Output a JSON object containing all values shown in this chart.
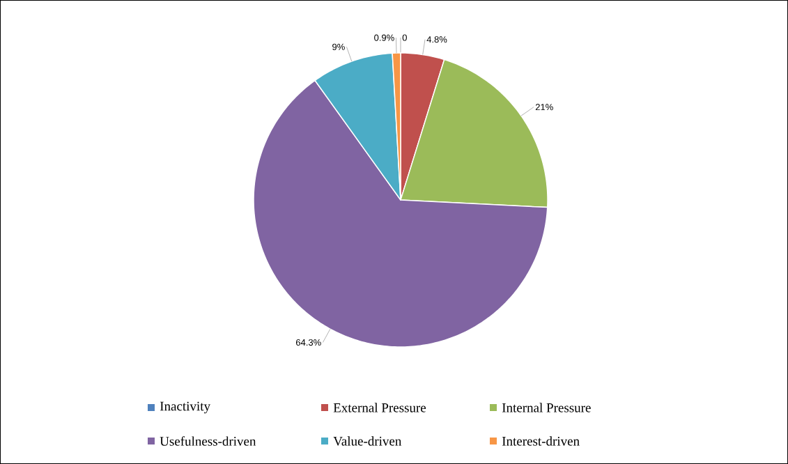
{
  "chart_data": {
    "type": "pie",
    "categories": [
      "Inactivity",
      "External Pressure",
      "Internal Pressure",
      "Usefulness-driven",
      "Value-driven",
      "Interest-driven"
    ],
    "values": [
      0,
      4.8,
      21,
      64.3,
      9,
      0.9
    ],
    "colors": [
      "#4f81bd",
      "#c0504d",
      "#9bbb59",
      "#8064a2",
      "#4bacc6",
      "#f79646"
    ],
    "value_labels": [
      "0",
      "4.8%",
      "21%",
      "64.3%",
      "9%",
      "0.9%"
    ],
    "legend": "bottom"
  }
}
